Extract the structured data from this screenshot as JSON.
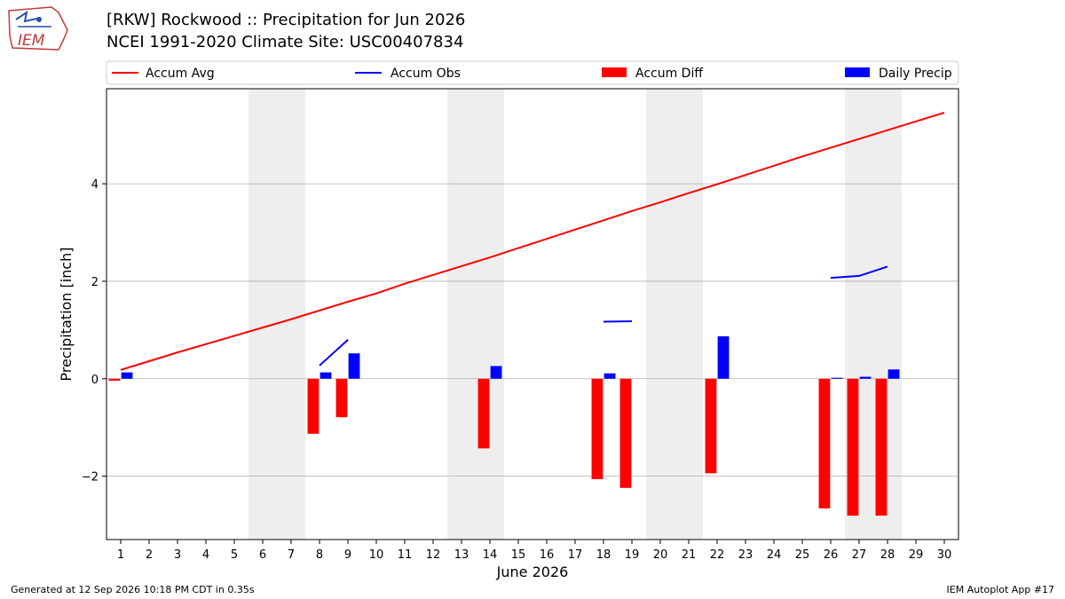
{
  "header": {
    "title_line1": "[RKW] Rockwood :: Precipitation for Jun 2026",
    "title_line2": "NCEI 1991-2020 Climate Site: USC00407834",
    "logo_text": "IEM"
  },
  "footer": {
    "left": "Generated at 12 Sep 2026 10:18 PM CDT in 0.35s",
    "right": "IEM Autoplot App #17"
  },
  "colors": {
    "avg": "#ff0000",
    "obs": "#0000ff",
    "diff": "#ff0000",
    "daily": "#0000ff",
    "weekend": "#eeeeee",
    "grid": "#b0b0b0"
  },
  "chart_data": {
    "type": "bar",
    "xlabel": "June 2026",
    "ylabel": "Precipitation [inch]",
    "xlim": [
      0.5,
      30.5
    ],
    "ylim": [
      -3.3,
      5.95
    ],
    "yticks": [
      -2,
      0,
      2,
      4
    ],
    "ytick_labels": [
      "−2",
      "0",
      "2",
      "4"
    ],
    "x": [
      1,
      2,
      3,
      4,
      5,
      6,
      7,
      8,
      9,
      10,
      11,
      12,
      13,
      14,
      15,
      16,
      17,
      18,
      19,
      20,
      21,
      22,
      23,
      24,
      25,
      26,
      27,
      28,
      29,
      30
    ],
    "weekend_days": [
      6,
      7,
      13,
      14,
      20,
      21,
      27,
      28
    ],
    "grid": "horizontal",
    "legend": {
      "placement": "top",
      "entries": [
        "Accum Avg",
        "Accum Obs",
        "Accum Diff",
        "Daily Precip"
      ]
    },
    "series": [
      {
        "name": "Accum Avg",
        "kind": "line",
        "values": [
          0.18,
          0.36,
          0.54,
          0.71,
          0.88,
          1.05,
          1.22,
          1.4,
          1.58,
          1.75,
          1.95,
          2.13,
          2.31,
          2.49,
          2.68,
          2.87,
          3.06,
          3.25,
          3.44,
          3.62,
          3.81,
          3.99,
          4.18,
          4.37,
          4.56,
          4.74,
          4.92,
          5.1,
          5.28,
          5.46
        ]
      },
      {
        "name": "Accum Obs",
        "kind": "line",
        "values": [
          null,
          null,
          null,
          null,
          null,
          null,
          null,
          0.27,
          0.8,
          null,
          null,
          null,
          null,
          null,
          null,
          null,
          null,
          1.17,
          1.18,
          null,
          null,
          null,
          null,
          null,
          null,
          2.07,
          2.11,
          2.3,
          null,
          null
        ]
      },
      {
        "name": "Accum Diff",
        "kind": "bar",
        "offset": -0.22,
        "values": [
          -0.04,
          null,
          null,
          null,
          null,
          null,
          null,
          -1.13,
          -0.79,
          null,
          null,
          null,
          null,
          -1.43,
          null,
          null,
          null,
          -2.06,
          -2.24,
          null,
          null,
          -1.94,
          null,
          null,
          null,
          -2.66,
          -2.81,
          -2.81,
          null,
          null
        ]
      },
      {
        "name": "Daily Precip",
        "kind": "bar",
        "offset": 0.22,
        "values": [
          0.13,
          null,
          null,
          null,
          null,
          null,
          null,
          0.13,
          0.52,
          null,
          null,
          null,
          null,
          0.26,
          null,
          null,
          null,
          0.11,
          null,
          null,
          null,
          0.87,
          null,
          null,
          null,
          0.02,
          0.04,
          0.19,
          null,
          null
        ]
      }
    ]
  }
}
